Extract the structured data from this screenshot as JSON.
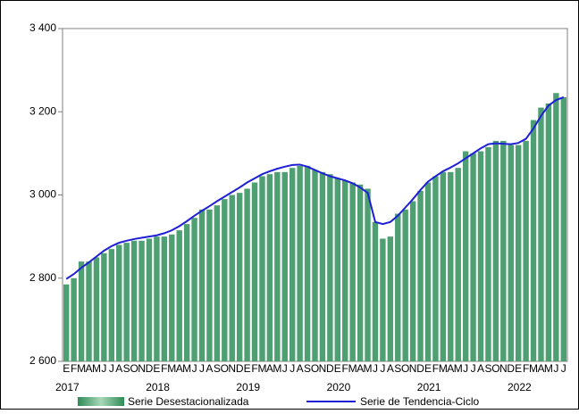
{
  "chart_data": {
    "type": "bar_line",
    "categories": [
      "E",
      "F",
      "M",
      "A",
      "M",
      "J",
      "J",
      "A",
      "S",
      "O",
      "N",
      "D",
      "E",
      "F",
      "M",
      "A",
      "M",
      "J",
      "J",
      "A",
      "S",
      "O",
      "N",
      "D",
      "E",
      "F",
      "M",
      "A",
      "M",
      "J",
      "J",
      "A",
      "S",
      "O",
      "N",
      "D",
      "E",
      "F",
      "M",
      "A",
      "M",
      "J",
      "J",
      "A",
      "S",
      "O",
      "N",
      "D",
      "E",
      "F",
      "M",
      "A",
      "M",
      "J",
      "J",
      "A",
      "S",
      "O",
      "N",
      "D",
      "E",
      "F",
      "M",
      "A",
      "M",
      "J",
      "J"
    ],
    "years": [
      "2017",
      "2018",
      "2019",
      "2020",
      "2021",
      "2022"
    ],
    "series": [
      {
        "name": "Serie Desestacionalizada",
        "color": "#4ea072",
        "kind": "bar",
        "values": [
          2785,
          2800,
          2840,
          2840,
          2850,
          2860,
          2870,
          2880,
          2885,
          2890,
          2890,
          2895,
          2900,
          2900,
          2905,
          2915,
          2930,
          2945,
          2965,
          2965,
          2975,
          2990,
          3000,
          3005,
          3015,
          3030,
          3045,
          3050,
          3055,
          3055,
          3065,
          3070,
          3070,
          3060,
          3055,
          3050,
          3040,
          3035,
          3030,
          3025,
          3015,
          2935,
          2895,
          2900,
          2955,
          2965,
          2985,
          3010,
          3030,
          3045,
          3055,
          3055,
          3065,
          3105,
          3100,
          3105,
          3115,
          3130,
          3130,
          3120,
          3120,
          3130,
          3180,
          3210,
          3220,
          3245,
          3235
        ]
      },
      {
        "name": "Serie de Tendencia-Ciclo",
        "color": "#1f1fd6",
        "kind": "line",
        "values": [
          2798,
          2810,
          2825,
          2838,
          2852,
          2866,
          2877,
          2885,
          2890,
          2894,
          2897,
          2900,
          2903,
          2908,
          2915,
          2925,
          2937,
          2950,
          2962,
          2973,
          2985,
          2996,
          3007,
          3018,
          3030,
          3040,
          3050,
          3057,
          3063,
          3068,
          3072,
          3073,
          3068,
          3060,
          3052,
          3045,
          3040,
          3035,
          3028,
          3018,
          3005,
          2935,
          2930,
          2935,
          2950,
          2970,
          2990,
          3012,
          3032,
          3045,
          3057,
          3066,
          3076,
          3088,
          3100,
          3112,
          3122,
          3124,
          3123,
          3122,
          3125,
          3135,
          3160,
          3190,
          3215,
          3228,
          3235
        ]
      }
    ],
    "ylim": [
      2600,
      3400
    ],
    "yticks": [
      {
        "value": 2600,
        "label": "2 600"
      },
      {
        "value": 2800,
        "label": "2 800"
      },
      {
        "value": 3000,
        "label": "3 000"
      },
      {
        "value": 3200,
        "label": "3 200"
      },
      {
        "value": 3400,
        "label": "3 400"
      }
    ]
  }
}
